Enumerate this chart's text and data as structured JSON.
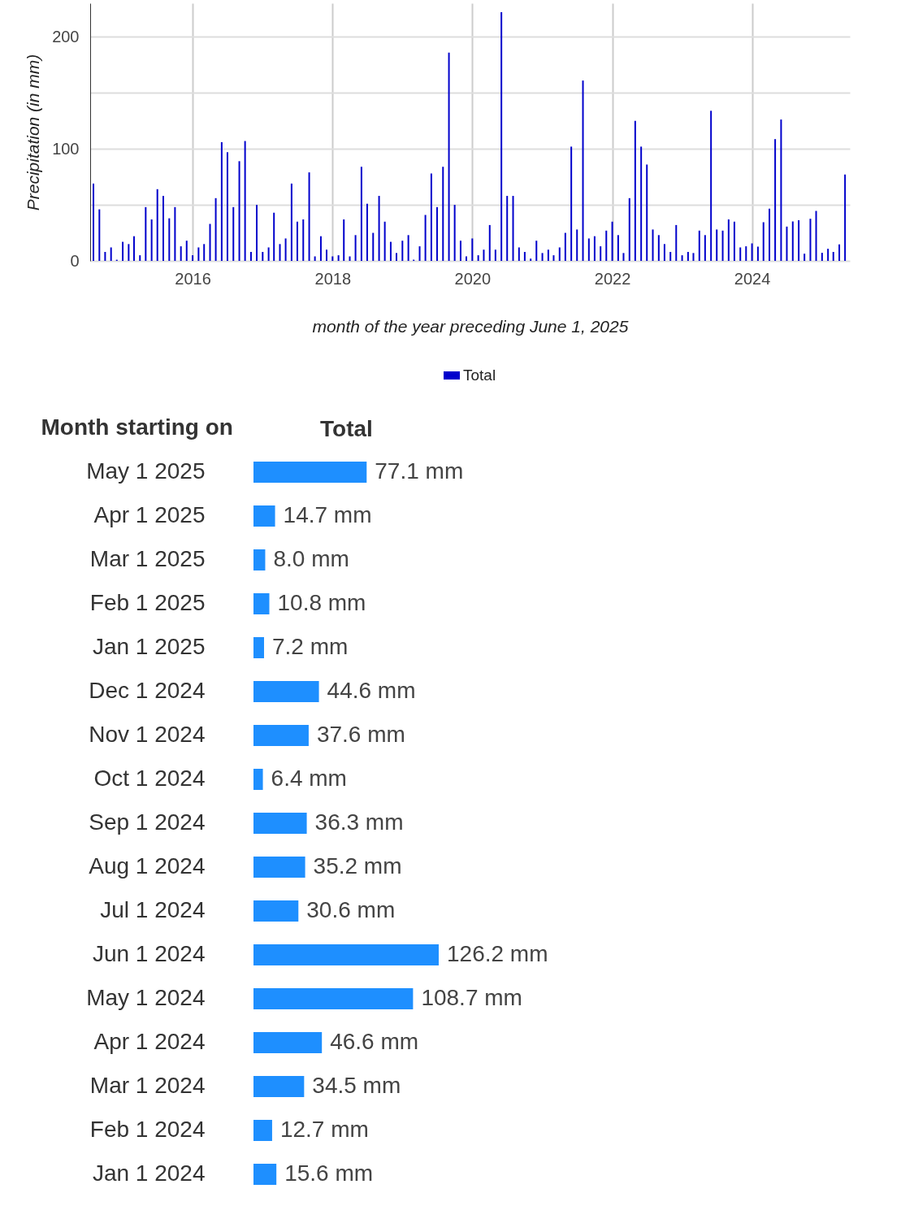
{
  "chart_data": [
    {
      "type": "bar",
      "ylabel": "Precipitation (in mm)",
      "xlabel": "month of the year preceding June 1, 2025",
      "x": [
        "2014-08",
        "2014-09",
        "2014-10",
        "2014-11",
        "2014-12",
        "2015-01",
        "2015-02",
        "2015-03",
        "2015-04",
        "2015-05",
        "2015-06",
        "2015-07",
        "2015-08",
        "2015-09",
        "2015-10",
        "2015-11",
        "2015-12",
        "2016-01",
        "2016-02",
        "2016-03",
        "2016-04",
        "2016-05",
        "2016-06",
        "2016-07",
        "2016-08",
        "2016-09",
        "2016-10",
        "2016-11",
        "2016-12",
        "2017-01",
        "2017-02",
        "2017-03",
        "2017-04",
        "2017-05",
        "2017-06",
        "2017-07",
        "2017-08",
        "2017-09",
        "2017-10",
        "2017-11",
        "2017-12",
        "2018-01",
        "2018-02",
        "2018-03",
        "2018-04",
        "2018-05",
        "2018-06",
        "2018-07",
        "2018-08",
        "2018-09",
        "2018-10",
        "2018-11",
        "2018-12",
        "2019-01",
        "2019-02",
        "2019-03",
        "2019-04",
        "2019-05",
        "2019-06",
        "2019-07",
        "2019-08",
        "2019-09",
        "2019-10",
        "2019-11",
        "2019-12",
        "2020-01",
        "2020-02",
        "2020-03",
        "2020-04",
        "2020-05",
        "2020-06",
        "2020-07",
        "2020-08",
        "2020-09",
        "2020-10",
        "2020-11",
        "2020-12",
        "2021-01",
        "2021-02",
        "2021-03",
        "2021-04",
        "2021-05",
        "2021-06",
        "2021-07",
        "2021-08",
        "2021-09",
        "2021-10",
        "2021-11",
        "2021-12",
        "2022-01",
        "2022-02",
        "2022-03",
        "2022-04",
        "2022-05",
        "2022-06",
        "2022-07",
        "2022-08",
        "2022-09",
        "2022-10",
        "2022-11",
        "2022-12",
        "2023-01",
        "2023-02",
        "2023-03",
        "2023-04",
        "2023-05",
        "2023-06",
        "2023-07",
        "2023-08",
        "2023-09",
        "2023-10",
        "2023-11",
        "2023-12",
        "2024-01",
        "2024-02",
        "2024-03",
        "2024-04",
        "2024-05",
        "2024-06",
        "2024-07",
        "2024-08",
        "2024-09",
        "2024-10",
        "2024-11",
        "2024-12",
        "2025-01",
        "2025-02",
        "2025-03",
        "2025-04",
        "2025-05"
      ],
      "series": [
        {
          "name": "Total",
          "color": "#0000cc",
          "values": [
            69,
            46,
            8,
            12,
            1,
            17,
            15,
            22,
            5,
            48,
            37,
            64,
            58,
            38,
            48,
            13,
            18,
            5,
            12,
            15,
            33,
            56,
            106,
            97,
            48,
            89,
            107,
            8,
            50,
            8,
            12,
            43,
            15,
            20,
            69,
            35,
            37,
            79,
            4,
            22,
            10,
            4,
            5,
            37,
            4,
            23,
            84,
            51,
            25,
            58,
            35,
            17,
            7,
            18,
            23,
            1,
            13,
            41,
            78,
            48,
            84,
            186,
            50,
            18,
            4,
            20,
            5,
            10,
            32,
            10,
            222,
            58,
            58,
            12,
            8,
            2,
            18,
            7,
            10,
            5,
            12,
            25,
            102,
            28,
            161,
            20,
            22,
            13,
            27,
            35,
            23,
            7,
            56,
            125,
            102,
            86,
            28,
            23,
            15,
            8,
            32,
            5,
            8,
            7,
            27,
            23,
            134,
            28,
            27,
            37,
            35,
            12,
            13,
            15.6,
            12.7,
            34.5,
            46.6,
            108.7,
            126.2,
            30.6,
            35.2,
            36.3,
            6.4,
            37.6,
            44.6,
            7.2,
            10.8,
            8.0,
            14.7,
            77.1
          ]
        }
      ],
      "xlim": [
        "2014-07-15",
        "2025-05-26"
      ],
      "xticks": [
        "2016",
        "2018",
        "2020",
        "2022",
        "2024"
      ],
      "ylim": [
        0,
        230
      ],
      "yticks": [
        0,
        {
          "value": 50,
          "label": null
        },
        100,
        {
          "value": 150,
          "label": null
        },
        200
      ],
      "grid": true,
      "legend": "bottom"
    },
    {
      "type": "bar",
      "orientation": "horizontal",
      "ylabel": "Month starting on",
      "xlabel": "Total",
      "categories": [
        "May 1 2025",
        "Apr 1 2025",
        "Mar 1 2025",
        "Feb 1 2025",
        "Jan 1 2025",
        "Dec 1 2024",
        "Nov 1 2024",
        "Oct 1 2024",
        "Sep 1 2024",
        "Aug 1 2024",
        "Jul 1 2024",
        "Jun 1 2024",
        "May 1 2024",
        "Apr 1 2024",
        "Mar 1 2024",
        "Feb 1 2024",
        "Jan 1 2024"
      ],
      "values": [
        77.1,
        14.7,
        8.0,
        10.8,
        7.2,
        44.6,
        37.6,
        6.4,
        36.3,
        35.2,
        30.6,
        126.2,
        108.7,
        46.6,
        34.5,
        12.7,
        15.6
      ],
      "value_labels": [
        "77.1 mm",
        "14.7 mm",
        "8.0 mm",
        "10.8 mm",
        "7.2 mm",
        "44.6 mm",
        "37.6 mm",
        "6.4 mm",
        "36.3 mm",
        "35.2 mm",
        "30.6 mm",
        "126.2 mm",
        "108.7 mm",
        "46.6 mm",
        "34.5 mm",
        "12.7 mm",
        "15.6 mm"
      ],
      "color": "#1e8fff",
      "tick_labels": "y"
    }
  ]
}
